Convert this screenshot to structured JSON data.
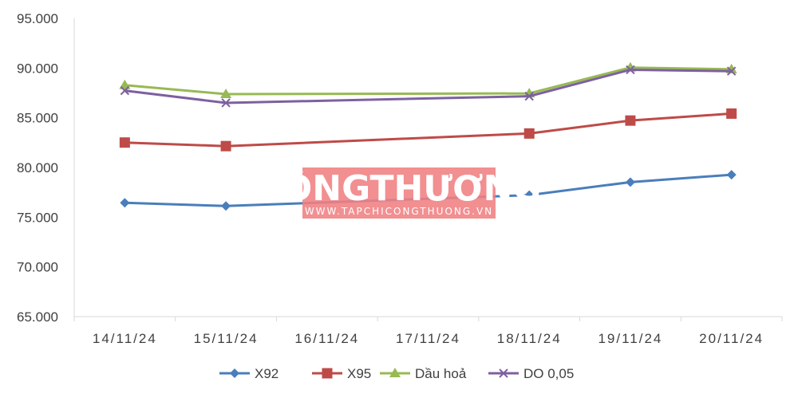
{
  "chart_data": {
    "type": "line",
    "categories": [
      "14/11/24",
      "15/11/24",
      "16/11/24",
      "17/11/24",
      "18/11/24",
      "19/11/24",
      "20/11/24"
    ],
    "x_positions": [
      0,
      1,
      2,
      3,
      4,
      5,
      6
    ],
    "ylim": [
      65000,
      95000
    ],
    "yticks": [
      65000,
      70000,
      75000,
      80000,
      85000,
      90000,
      95000
    ],
    "ytick_labels": [
      "65.000",
      "70.000",
      "75.000",
      "80.000",
      "85.000",
      "90.000",
      "95.000"
    ],
    "grid": false,
    "legend_position": "bottom",
    "series": [
      {
        "name": "X92",
        "color": "#4a7ebb",
        "marker": "diamond",
        "x": [
          0,
          1,
          4,
          5,
          6
        ],
        "values": [
          76450,
          76130,
          77220,
          78530,
          79270
        ]
      },
      {
        "name": "X95",
        "color": "#be4b48",
        "marker": "square",
        "x": [
          0,
          1,
          4,
          5,
          6
        ],
        "values": [
          82510,
          82150,
          83420,
          84720,
          85420
        ]
      },
      {
        "name": "Dầu hoả",
        "color": "#98b954",
        "marker": "triangle",
        "x": [
          0,
          1,
          4,
          5,
          6
        ],
        "values": [
          88280,
          87380,
          87450,
          90050,
          89880
        ]
      },
      {
        "name": "DO 0,05",
        "color": "#7d60a0",
        "marker": "x",
        "x": [
          0,
          1,
          4,
          5,
          6
        ],
        "values": [
          87730,
          86500,
          87170,
          89830,
          89690
        ]
      }
    ]
  },
  "watermark": {
    "title": "CÔNGTHƯƠNG",
    "url": "WWW.TAPCHICONGTHUONG.VN"
  }
}
